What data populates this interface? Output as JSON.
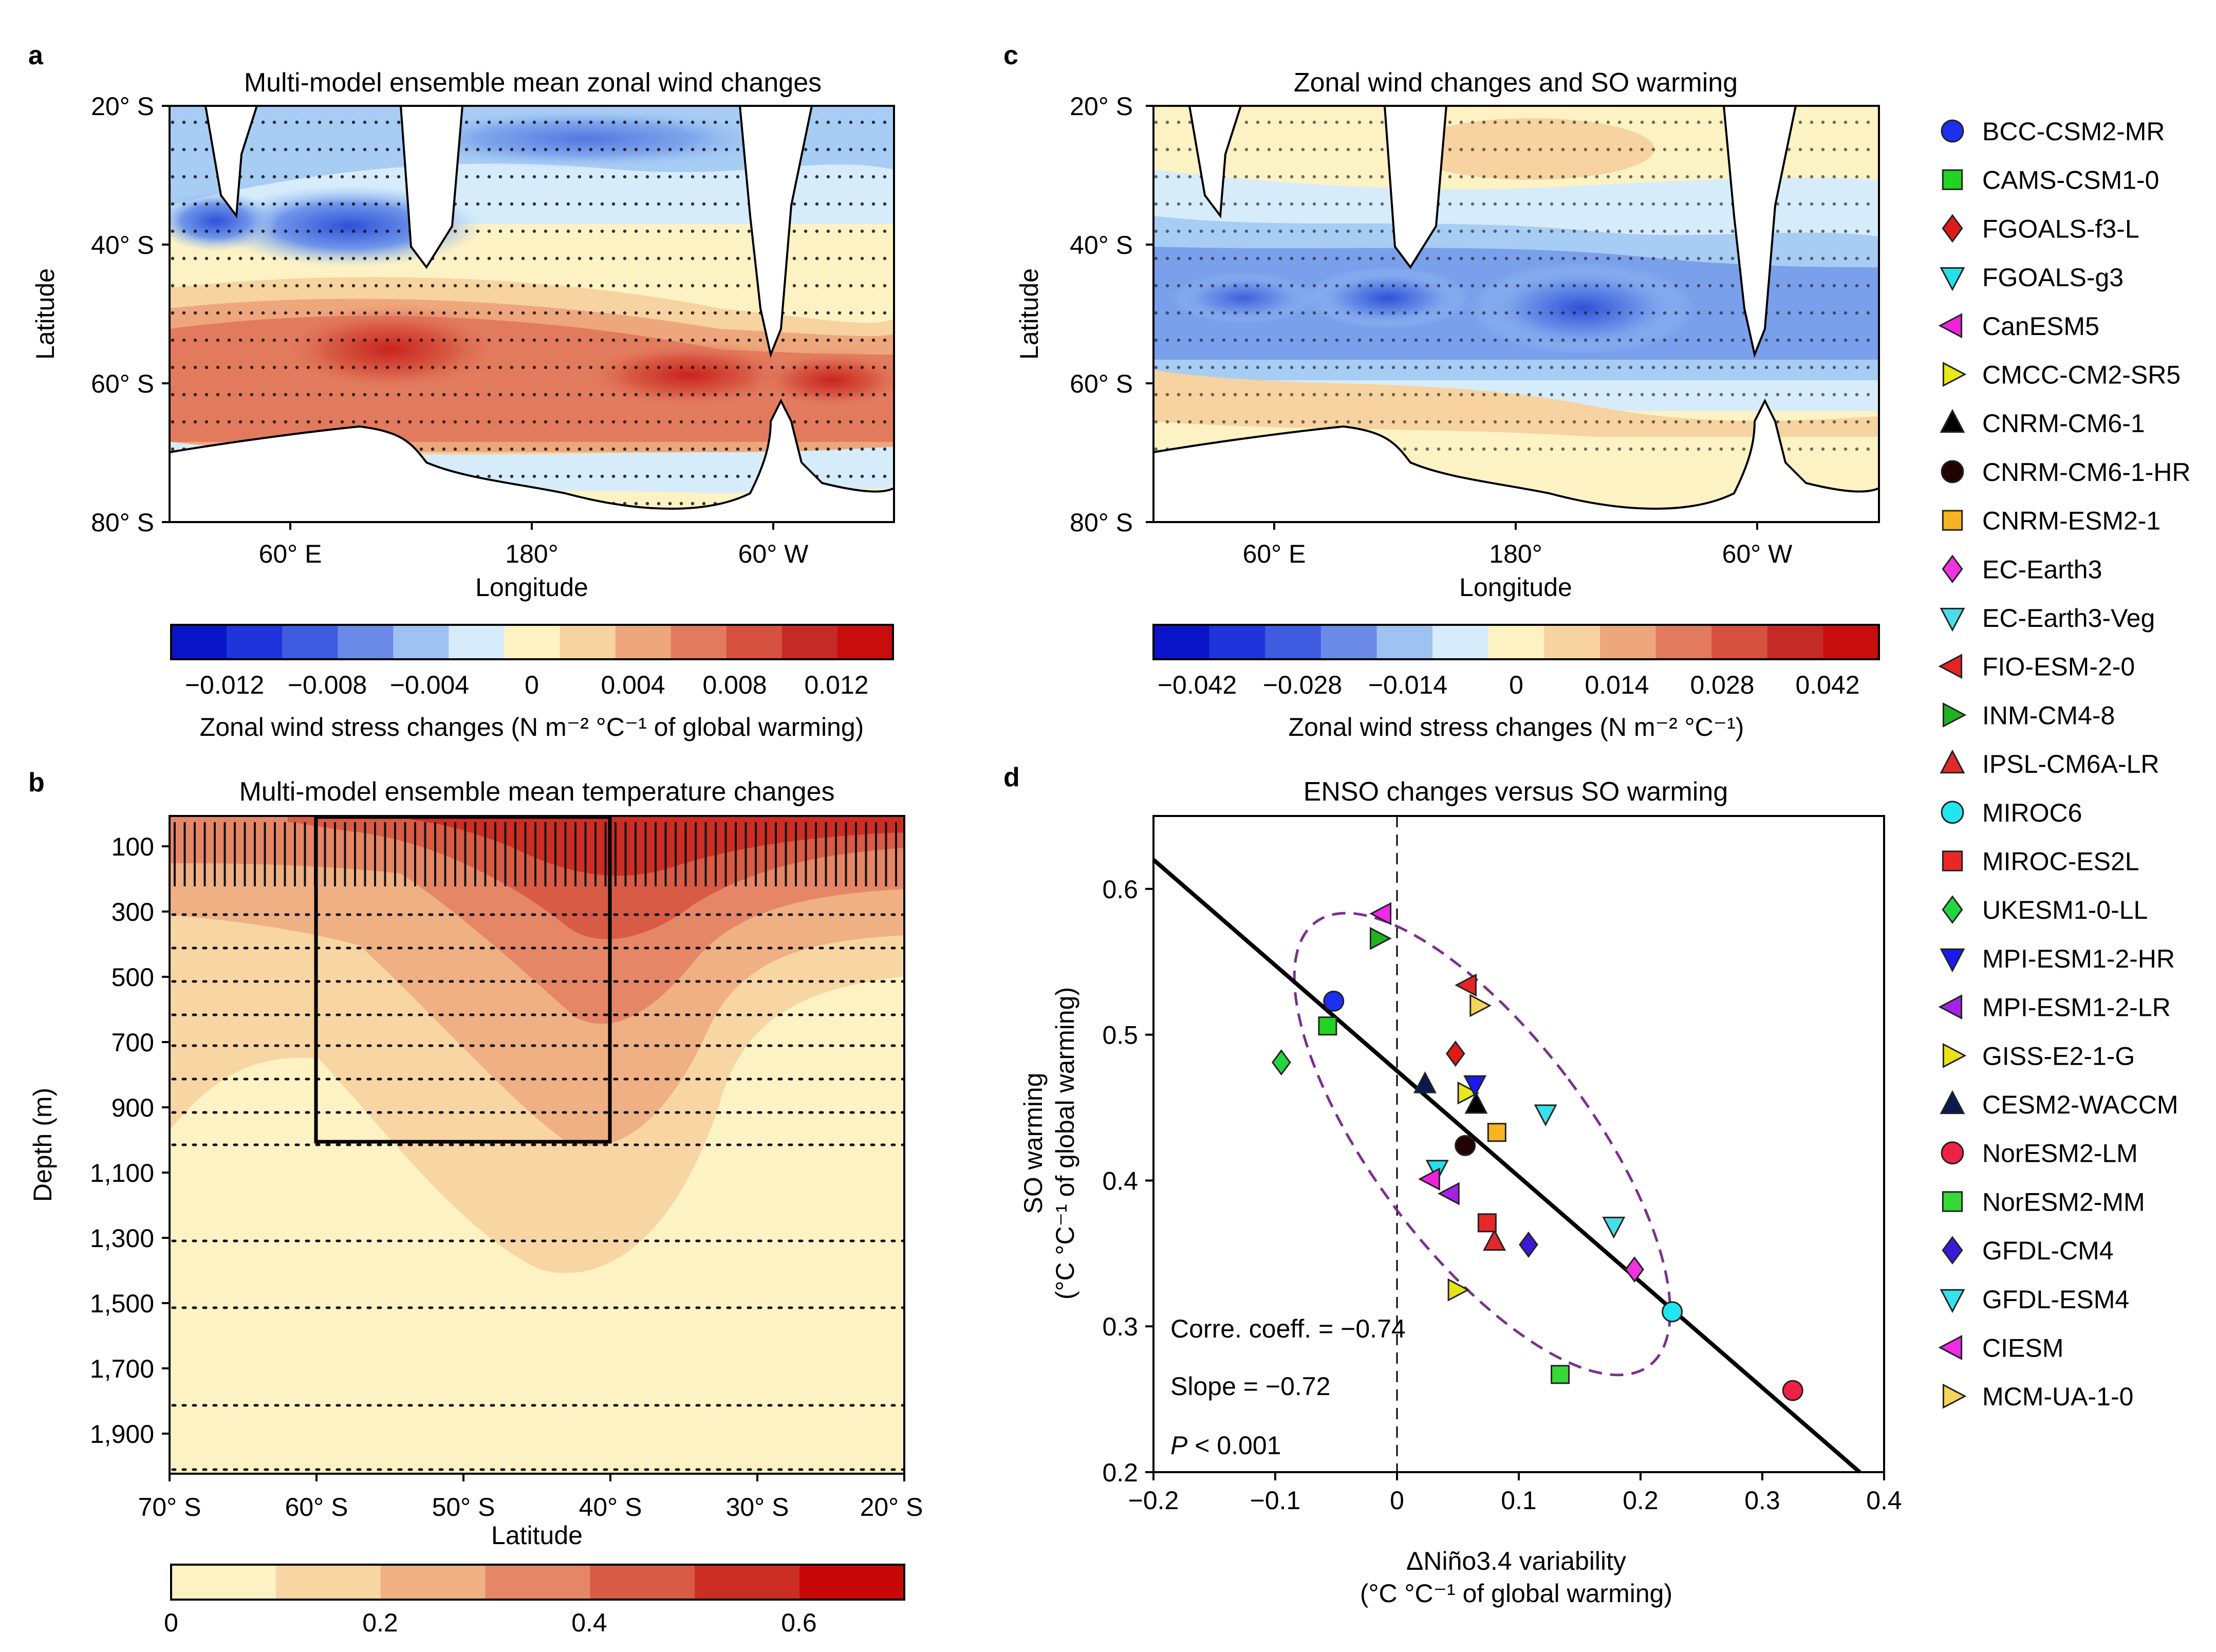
{
  "panel_a": {
    "letter": "a",
    "title": "Multi-model ensemble mean zonal wind changes",
    "ylabel": "Latitude",
    "xlabel": "Longitude",
    "yticks": [
      "20° S",
      "40° S",
      "60° S",
      "80° S"
    ],
    "xticks": [
      "60° E",
      "180°",
      "60° W"
    ],
    "colorbar": {
      "ticks": [
        "−0.012",
        "−0.008",
        "−0.004",
        "0",
        "0.004",
        "0.008",
        "0.012"
      ],
      "label": "Zonal wind stress changes (N m⁻² °C⁻¹ of global warming)",
      "colors": [
        "#0a14c8",
        "#2034dc",
        "#3f5be0",
        "#6b8ae8",
        "#9fc2f2",
        "#d6ecfa",
        "#fdf2c4",
        "#f6d3a0",
        "#eea77c",
        "#e27b5d",
        "#d4523f",
        "#c42a26",
        "#c80d0d"
      ]
    }
  },
  "panel_b": {
    "letter": "b",
    "title": "Multi-model ensemble mean temperature changes",
    "ylabel": "Depth (m)",
    "xlabel": "Latitude",
    "yticks": [
      "100",
      "300",
      "500",
      "700",
      "900",
      "1,100",
      "1,300",
      "1,500",
      "1,700",
      "1,900"
    ],
    "xticks": [
      "70° S",
      "60° S",
      "50° S",
      "40° S",
      "30° S",
      "20° S"
    ],
    "colorbar": {
      "ticks": [
        "0",
        "0.2",
        "0.4",
        "0.6"
      ],
      "colors": [
        "#fdf2c4",
        "#f7d6a4",
        "#efb084",
        "#e58767",
        "#d85b45",
        "#cc2d24",
        "#c80808"
      ]
    }
  },
  "panel_c": {
    "letter": "c",
    "title": "Zonal wind changes and SO warming",
    "ylabel": "Latitude",
    "xlabel": "Longitude",
    "yticks": [
      "20° S",
      "40° S",
      "60° S",
      "80° S"
    ],
    "xticks": [
      "60° E",
      "180°",
      "60° W"
    ],
    "colorbar": {
      "ticks": [
        "−0.042",
        "−0.028",
        "−0.014",
        "0",
        "0.014",
        "0.028",
        "0.042"
      ],
      "label": "Zonal wind stress changes (N m⁻² °C⁻¹)",
      "colors": [
        "#0a14c8",
        "#2034dc",
        "#3f5be0",
        "#6b8ae8",
        "#9fc2f2",
        "#d6ecfa",
        "#fdf2c4",
        "#f6d3a0",
        "#eea77c",
        "#e27b5d",
        "#d4523f",
        "#c42a26",
        "#c80d0d"
      ]
    }
  },
  "panel_d": {
    "letter": "d",
    "title": "ENSO changes versus SO warming",
    "ylabel_line1": "SO warming",
    "ylabel_line2": "(°C °C⁻¹ of global warming)",
    "xlabel_line1": "ΔNiño3.4 variability",
    "xlabel_line2": "(°C °C⁻¹ of global warming)",
    "annot_corr": "Corre. coeff. = −0.74",
    "annot_slope": "Slope = −0.72",
    "annot_p_italic": "P",
    "annot_p_rest": " < 0.001"
  },
  "chart_data": {
    "type": "scatter",
    "title": "ENSO changes versus SO warming",
    "xlabel": "ΔNiño3.4 variability (°C °C⁻¹ of global warming)",
    "ylabel": "SO warming (°C °C⁻¹ of global warming)",
    "xlim": [
      -0.2,
      0.4
    ],
    "ylim": [
      0.2,
      0.65
    ],
    "xticks": [
      "−0.2",
      "−0.1",
      "0",
      "0.1",
      "0.2",
      "0.3",
      "0.4"
    ],
    "yticks": [
      "0.2",
      "0.3",
      "0.4",
      "0.5",
      "0.6"
    ],
    "regression": {
      "x": [
        -0.2,
        0.38
      ],
      "y": [
        0.62,
        0.2
      ]
    },
    "points": [
      {
        "name": "BCC-CSM2-MR",
        "marker": "circle",
        "color": "#1f2ff0",
        "x": -0.052,
        "y": 0.523
      },
      {
        "name": "CAMS-CSM1-0",
        "marker": "square",
        "color": "#22d322",
        "x": -0.057,
        "y": 0.506
      },
      {
        "name": "FGOALS-f3-L",
        "marker": "diamond",
        "color": "#e01a1a",
        "x": 0.048,
        "y": 0.487
      },
      {
        "name": "FGOALS-g3",
        "marker": "tri-down",
        "color": "#22e0ec",
        "x": 0.033,
        "y": 0.408
      },
      {
        "name": "CanESM5",
        "marker": "tri-left",
        "color": "#ee22dd",
        "x": 0.028,
        "y": 0.401
      },
      {
        "name": "CMCC-CM2-SR5",
        "marker": "tri-right",
        "color": "#e8e81a",
        "x": 0.057,
        "y": 0.46
      },
      {
        "name": "CNRM-CM6-1",
        "marker": "tri-up",
        "color": "#000000",
        "x": 0.065,
        "y": 0.452
      },
      {
        "name": "CNRM-CM6-1-HR",
        "marker": "circle",
        "color": "#200404",
        "x": 0.056,
        "y": 0.424
      },
      {
        "name": "CNRM-ESM2-1",
        "marker": "square",
        "color": "#f7b320",
        "x": 0.082,
        "y": 0.433
      },
      {
        "name": "EC-Earth3",
        "marker": "diamond",
        "color": "#f032e0",
        "x": 0.195,
        "y": 0.339
      },
      {
        "name": "EC-Earth3-Veg",
        "marker": "tri-down",
        "color": "#4adce8",
        "x": 0.178,
        "y": 0.369
      },
      {
        "name": "FIO-ESM-2-0",
        "marker": "tri-left",
        "color": "#e62424",
        "x": 0.058,
        "y": 0.534
      },
      {
        "name": "INM-CM4-8",
        "marker": "tri-right",
        "color": "#1fb31f",
        "x": -0.015,
        "y": 0.566
      },
      {
        "name": "IPSL-CM6A-LR",
        "marker": "tri-up",
        "color": "#e02a2a",
        "x": 0.08,
        "y": 0.358
      },
      {
        "name": "MIROC6",
        "marker": "circle",
        "color": "#22e6ef",
        "x": 0.226,
        "y": 0.31
      },
      {
        "name": "MIROC-ES2L",
        "marker": "square",
        "color": "#e82828",
        "x": 0.074,
        "y": 0.371
      },
      {
        "name": "UKESM1-0-LL",
        "marker": "diamond",
        "color": "#22d640",
        "x": -0.095,
        "y": 0.481
      },
      {
        "name": "MPI-ESM1-2-HR",
        "marker": "tri-down",
        "color": "#1a1aee",
        "x": 0.064,
        "y": 0.466
      },
      {
        "name": "MPI-ESM1-2-LR",
        "marker": "tri-left",
        "color": "#a322e6",
        "x": 0.044,
        "y": 0.391
      },
      {
        "name": "GISS-E2-1-G",
        "marker": "tri-right",
        "color": "#e8e21a",
        "x": 0.049,
        "y": 0.325
      },
      {
        "name": "CESM2-WACCM",
        "marker": "tri-up",
        "color": "#0a1a50",
        "x": 0.023,
        "y": 0.466
      },
      {
        "name": "NorESM2-LM",
        "marker": "circle",
        "color": "#ee2244",
        "x": 0.325,
        "y": 0.256
      },
      {
        "name": "NorESM2-MM",
        "marker": "square",
        "color": "#36d836",
        "x": 0.134,
        "y": 0.267
      },
      {
        "name": "GFDL-CM4",
        "marker": "diamond",
        "color": "#3a1ad8",
        "x": 0.108,
        "y": 0.356
      },
      {
        "name": "GFDL-ESM4",
        "marker": "tri-down",
        "color": "#36e2ee",
        "x": 0.122,
        "y": 0.446
      },
      {
        "name": "CIESM",
        "marker": "tri-left",
        "color": "#f02ae8",
        "x": -0.012,
        "y": 0.583
      },
      {
        "name": "MCM-UA-1-0",
        "marker": "tri-right",
        "color": "#f6d45a",
        "x": 0.067,
        "y": 0.52
      }
    ]
  }
}
